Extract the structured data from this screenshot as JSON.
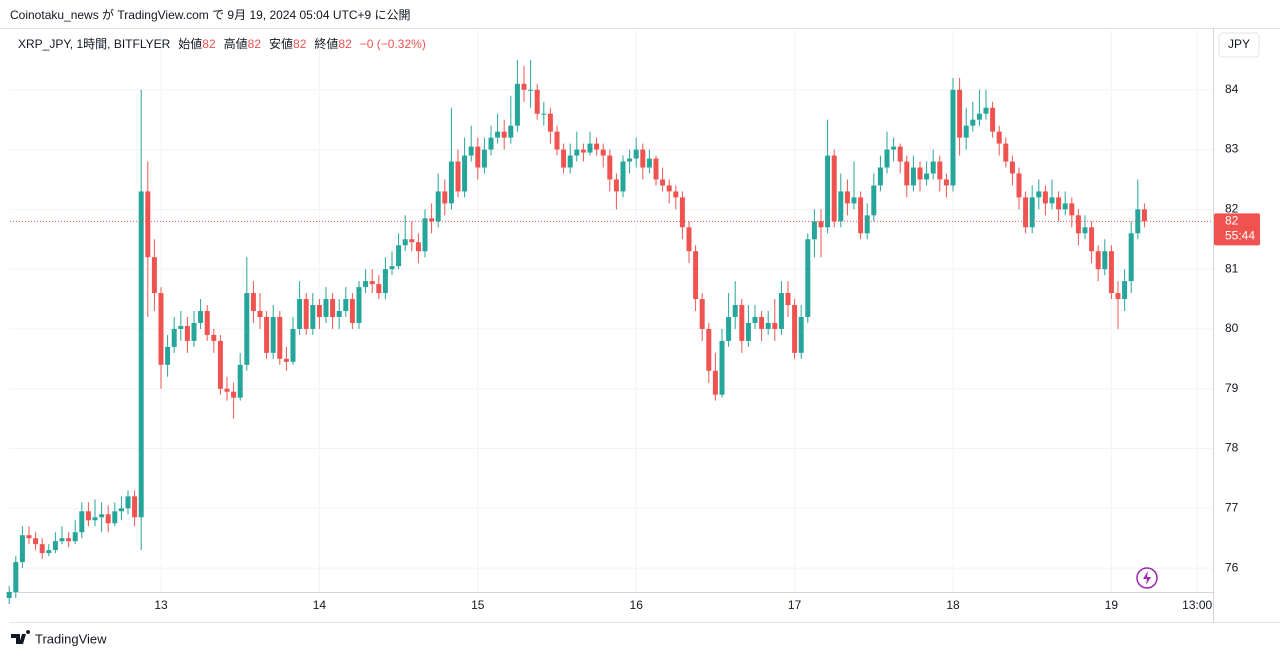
{
  "header": {
    "publish": "Coinotaku_news が TradingView.com で 9月 19, 2024 05:04 UTC+9 に公開"
  },
  "legend": {
    "symbol": "XRP_JPY, 1時間, BITFLYER",
    "fields": [
      {
        "label": "始値",
        "value": 82
      },
      {
        "label": "高値",
        "value": 82
      },
      {
        "label": "安値",
        "value": 82
      },
      {
        "label": "終値",
        "value": 82
      }
    ],
    "change": "−0 (−0.32%)"
  },
  "currency": "JPY",
  "footer": {
    "logo": "TradingView"
  },
  "chart_data": {
    "type": "candlestick",
    "up_color": "#26a69a",
    "down_color": "#ef5350",
    "grid": true,
    "ylim": [
      75.6,
      85.0
    ],
    "yticks": [
      76,
      77,
      78,
      79,
      80,
      81,
      82,
      83,
      84
    ],
    "last_price": {
      "value": 81.8,
      "label": "82",
      "countdown": "55:44"
    },
    "categories": [
      null,
      null,
      null,
      null,
      null,
      null,
      null,
      null,
      null,
      null,
      null,
      null,
      null,
      null,
      null,
      null,
      null,
      null,
      null,
      null,
      null,
      null,
      null,
      "13",
      null,
      null,
      null,
      null,
      null,
      null,
      null,
      null,
      null,
      null,
      null,
      null,
      null,
      null,
      null,
      null,
      null,
      null,
      null,
      null,
      null,
      null,
      null,
      "14",
      null,
      null,
      null,
      null,
      null,
      null,
      null,
      null,
      null,
      null,
      null,
      null,
      null,
      null,
      null,
      null,
      null,
      null,
      null,
      null,
      null,
      null,
      null,
      "15",
      null,
      null,
      null,
      null,
      null,
      null,
      null,
      null,
      null,
      null,
      null,
      null,
      null,
      null,
      null,
      null,
      null,
      null,
      null,
      null,
      null,
      null,
      null,
      "16",
      null,
      null,
      null,
      null,
      null,
      null,
      null,
      null,
      null,
      null,
      null,
      null,
      null,
      null,
      null,
      null,
      null,
      null,
      null,
      null,
      null,
      null,
      null,
      "17",
      null,
      null,
      null,
      null,
      null,
      null,
      null,
      null,
      null,
      null,
      null,
      null,
      null,
      null,
      null,
      null,
      null,
      null,
      null,
      null,
      null,
      null,
      null,
      "18",
      null,
      null,
      null,
      null,
      null,
      null,
      null,
      null,
      null,
      null,
      null,
      null,
      null,
      null,
      null,
      null,
      null,
      null,
      null,
      null,
      null,
      null,
      null,
      "19",
      null,
      null,
      null,
      null,
      null,
      null,
      null,
      null,
      null,
      null,
      null,
      null,
      "13:00"
    ],
    "ohlc": [
      [
        75.5,
        75.7,
        75.4,
        75.6
      ],
      [
        75.6,
        76.2,
        75.5,
        76.1
      ],
      [
        76.1,
        76.7,
        76.0,
        76.55
      ],
      [
        76.55,
        76.7,
        76.4,
        76.5
      ],
      [
        76.5,
        76.6,
        76.3,
        76.4
      ],
      [
        76.4,
        76.5,
        76.15,
        76.25
      ],
      [
        76.25,
        76.4,
        76.2,
        76.3
      ],
      [
        76.3,
        76.6,
        76.25,
        76.45
      ],
      [
        76.45,
        76.7,
        76.4,
        76.5
      ],
      [
        76.5,
        76.6,
        76.35,
        76.45
      ],
      [
        76.45,
        76.8,
        76.4,
        76.6
      ],
      [
        76.6,
        77.1,
        76.5,
        76.95
      ],
      [
        76.95,
        77.1,
        76.7,
        76.8
      ],
      [
        76.8,
        77.15,
        76.7,
        76.85
      ],
      [
        76.85,
        77.1,
        76.6,
        76.9
      ],
      [
        76.9,
        77.05,
        76.6,
        76.75
      ],
      [
        76.75,
        77.1,
        76.7,
        76.95
      ],
      [
        76.95,
        77.2,
        76.8,
        77.0
      ],
      [
        77.0,
        77.3,
        76.9,
        77.2
      ],
      [
        77.2,
        77.3,
        76.7,
        76.85
      ],
      [
        76.85,
        84.0,
        76.3,
        82.3
      ],
      [
        82.3,
        82.8,
        80.2,
        81.2
      ],
      [
        81.2,
        81.5,
        80.3,
        80.6
      ],
      [
        80.6,
        80.7,
        79.0,
        79.4
      ],
      [
        79.4,
        79.9,
        79.2,
        79.7
      ],
      [
        79.7,
        80.2,
        79.6,
        80.0
      ],
      [
        80.0,
        80.3,
        79.8,
        80.05
      ],
      [
        80.05,
        80.2,
        79.6,
        79.8
      ],
      [
        79.8,
        80.3,
        79.7,
        80.1
      ],
      [
        80.1,
        80.5,
        80.0,
        80.3
      ],
      [
        80.3,
        80.4,
        79.8,
        79.9
      ],
      [
        79.9,
        80.0,
        79.6,
        79.8
      ],
      [
        79.8,
        79.9,
        78.9,
        79.0
      ],
      [
        79.0,
        79.2,
        78.8,
        78.95
      ],
      [
        78.95,
        79.1,
        78.5,
        78.85
      ],
      [
        78.85,
        79.6,
        78.8,
        79.4
      ],
      [
        79.4,
        81.2,
        79.3,
        80.6
      ],
      [
        80.6,
        80.8,
        80.1,
        80.3
      ],
      [
        80.3,
        80.6,
        80.0,
        80.2
      ],
      [
        80.2,
        80.3,
        79.5,
        79.6
      ],
      [
        79.6,
        80.4,
        79.5,
        80.2
      ],
      [
        80.2,
        80.3,
        79.4,
        79.5
      ],
      [
        79.5,
        79.7,
        79.3,
        79.45
      ],
      [
        79.45,
        80.2,
        79.4,
        80.0
      ],
      [
        80.0,
        80.8,
        79.9,
        80.5
      ],
      [
        80.5,
        80.6,
        79.9,
        80.0
      ],
      [
        80.0,
        80.6,
        79.9,
        80.4
      ],
      [
        80.4,
        80.5,
        80.0,
        80.2
      ],
      [
        80.2,
        80.7,
        80.1,
        80.5
      ],
      [
        80.5,
        80.6,
        80.0,
        80.2
      ],
      [
        80.2,
        80.5,
        80.0,
        80.3
      ],
      [
        80.3,
        80.7,
        80.2,
        80.5
      ],
      [
        80.5,
        80.6,
        80.0,
        80.1
      ],
      [
        80.1,
        80.8,
        80.0,
        80.7
      ],
      [
        80.7,
        81.0,
        80.6,
        80.8
      ],
      [
        80.8,
        81.0,
        80.6,
        80.75
      ],
      [
        80.75,
        80.9,
        80.5,
        80.6
      ],
      [
        80.6,
        81.2,
        80.5,
        81.0
      ],
      [
        81.0,
        81.3,
        80.9,
        81.05
      ],
      [
        81.05,
        81.6,
        81.0,
        81.4
      ],
      [
        81.4,
        81.9,
        81.3,
        81.5
      ],
      [
        81.5,
        81.8,
        81.3,
        81.45
      ],
      [
        81.45,
        81.6,
        81.1,
        81.3
      ],
      [
        81.3,
        82.0,
        81.2,
        81.85
      ],
      [
        81.85,
        82.1,
        81.6,
        81.8
      ],
      [
        81.8,
        82.6,
        81.7,
        82.3
      ],
      [
        82.3,
        82.5,
        81.9,
        82.1
      ],
      [
        82.1,
        83.7,
        82.0,
        82.8
      ],
      [
        82.8,
        83.0,
        82.2,
        82.3
      ],
      [
        82.3,
        83.2,
        82.2,
        82.9
      ],
      [
        82.9,
        83.4,
        82.8,
        83.05
      ],
      [
        83.05,
        83.2,
        82.5,
        82.7
      ],
      [
        82.7,
        83.2,
        82.6,
        83.0
      ],
      [
        83.0,
        83.4,
        82.9,
        83.2
      ],
      [
        83.2,
        83.6,
        83.1,
        83.3
      ],
      [
        83.3,
        83.5,
        83.0,
        83.2
      ],
      [
        83.2,
        83.9,
        83.1,
        83.4
      ],
      [
        83.4,
        84.5,
        83.3,
        84.1
      ],
      [
        84.1,
        84.4,
        83.8,
        84.0
      ],
      [
        84.0,
        84.5,
        83.7,
        84.0
      ],
      [
        84.0,
        84.1,
        83.5,
        83.6
      ],
      [
        83.6,
        83.8,
        83.4,
        83.6
      ],
      [
        83.6,
        83.7,
        83.1,
        83.3
      ],
      [
        83.3,
        83.4,
        82.9,
        83.0
      ],
      [
        83.0,
        83.1,
        82.6,
        82.7
      ],
      [
        82.7,
        83.1,
        82.6,
        82.9
      ],
      [
        82.9,
        83.3,
        82.8,
        83.0
      ],
      [
        83.0,
        83.1,
        82.8,
        82.95
      ],
      [
        82.95,
        83.3,
        82.9,
        83.1
      ],
      [
        83.1,
        83.2,
        82.9,
        83.0
      ],
      [
        83.0,
        83.1,
        82.7,
        82.9
      ],
      [
        82.9,
        83.0,
        82.3,
        82.5
      ],
      [
        82.5,
        82.6,
        82.0,
        82.3
      ],
      [
        82.3,
        82.9,
        82.2,
        82.8
      ],
      [
        82.8,
        83.0,
        82.6,
        82.85
      ],
      [
        82.85,
        83.2,
        82.7,
        83.0
      ],
      [
        83.0,
        83.1,
        82.5,
        82.7
      ],
      [
        82.7,
        83.0,
        82.6,
        82.85
      ],
      [
        82.85,
        82.9,
        82.4,
        82.5
      ],
      [
        82.5,
        82.7,
        82.3,
        82.4
      ],
      [
        82.4,
        82.5,
        82.1,
        82.3
      ],
      [
        82.3,
        82.4,
        82.0,
        82.2
      ],
      [
        82.2,
        82.3,
        81.5,
        81.7
      ],
      [
        81.7,
        81.8,
        81.1,
        81.3
      ],
      [
        81.3,
        81.4,
        80.3,
        80.5
      ],
      [
        80.5,
        80.6,
        79.8,
        80.0
      ],
      [
        80.0,
        80.1,
        79.1,
        79.3
      ],
      [
        79.3,
        79.6,
        78.8,
        78.9
      ],
      [
        78.9,
        80.0,
        78.85,
        79.8
      ],
      [
        79.8,
        80.6,
        79.7,
        80.2
      ],
      [
        80.2,
        80.8,
        80.0,
        80.4
      ],
      [
        80.4,
        80.5,
        79.6,
        79.8
      ],
      [
        79.8,
        80.4,
        79.7,
        80.1
      ],
      [
        80.1,
        80.4,
        80.0,
        80.2
      ],
      [
        80.2,
        80.3,
        79.8,
        80.0
      ],
      [
        80.0,
        80.3,
        79.9,
        80.1
      ],
      [
        80.1,
        80.5,
        79.8,
        80.0
      ],
      [
        80.0,
        80.8,
        79.9,
        80.6
      ],
      [
        80.6,
        80.8,
        80.2,
        80.4
      ],
      [
        80.4,
        80.5,
        79.5,
        79.6
      ],
      [
        79.6,
        80.4,
        79.5,
        80.2
      ],
      [
        80.2,
        81.6,
        80.1,
        81.5
      ],
      [
        81.5,
        82.0,
        81.2,
        81.8
      ],
      [
        81.8,
        82.0,
        81.2,
        81.7
      ],
      [
        81.7,
        83.5,
        81.6,
        82.9
      ],
      [
        82.9,
        83.0,
        81.7,
        81.8
      ],
      [
        81.8,
        82.6,
        81.7,
        82.3
      ],
      [
        82.3,
        82.5,
        81.9,
        82.1
      ],
      [
        82.1,
        82.8,
        82.0,
        82.2
      ],
      [
        82.2,
        82.3,
        81.5,
        81.6
      ],
      [
        81.6,
        82.1,
        81.5,
        81.9
      ],
      [
        81.9,
        82.6,
        81.8,
        82.4
      ],
      [
        82.4,
        82.9,
        82.3,
        82.7
      ],
      [
        82.7,
        83.3,
        82.6,
        83.0
      ],
      [
        83.0,
        83.2,
        82.8,
        83.05
      ],
      [
        83.05,
        83.1,
        82.6,
        82.8
      ],
      [
        82.8,
        82.9,
        82.2,
        82.4
      ],
      [
        82.4,
        82.9,
        82.3,
        82.7
      ],
      [
        82.7,
        82.8,
        82.3,
        82.5
      ],
      [
        82.5,
        82.8,
        82.4,
        82.6
      ],
      [
        82.6,
        83.0,
        82.5,
        82.8
      ],
      [
        82.8,
        82.9,
        82.3,
        82.5
      ],
      [
        82.5,
        82.6,
        82.2,
        82.4
      ],
      [
        82.4,
        84.2,
        82.3,
        84.0
      ],
      [
        84.0,
        84.2,
        82.9,
        83.2
      ],
      [
        83.2,
        83.7,
        83.0,
        83.4
      ],
      [
        83.4,
        83.8,
        83.3,
        83.5
      ],
      [
        83.5,
        84.0,
        83.4,
        83.6
      ],
      [
        83.6,
        84.0,
        83.5,
        83.7
      ],
      [
        83.7,
        83.8,
        83.2,
        83.3
      ],
      [
        83.3,
        83.4,
        82.9,
        83.1
      ],
      [
        83.1,
        83.2,
        82.7,
        82.8
      ],
      [
        82.8,
        82.9,
        82.4,
        82.6
      ],
      [
        82.6,
        82.7,
        82.0,
        82.2
      ],
      [
        82.2,
        82.3,
        81.6,
        81.7
      ],
      [
        81.7,
        82.4,
        81.6,
        82.2
      ],
      [
        82.2,
        82.5,
        82.0,
        82.3
      ],
      [
        82.3,
        82.4,
        81.9,
        82.1
      ],
      [
        82.1,
        82.5,
        82.0,
        82.2
      ],
      [
        82.2,
        82.3,
        81.8,
        82.0
      ],
      [
        82.0,
        82.3,
        81.9,
        82.1
      ],
      [
        82.1,
        82.2,
        81.7,
        81.9
      ],
      [
        81.9,
        82.0,
        81.4,
        81.6
      ],
      [
        81.6,
        81.9,
        81.5,
        81.7
      ],
      [
        81.7,
        81.8,
        81.1,
        81.3
      ],
      [
        81.3,
        81.4,
        80.8,
        81.0
      ],
      [
        81.0,
        81.5,
        80.9,
        81.3
      ],
      [
        81.3,
        81.4,
        80.5,
        80.6
      ],
      [
        80.6,
        80.8,
        80.0,
        80.5
      ],
      [
        80.5,
        81.0,
        80.3,
        80.8
      ],
      [
        80.8,
        81.8,
        80.6,
        81.6
      ],
      [
        81.6,
        82.5,
        81.5,
        82.0
      ],
      [
        82.0,
        82.1,
        81.7,
        81.8
      ],
      null,
      null,
      null,
      null,
      null,
      null,
      null,
      null
    ]
  }
}
